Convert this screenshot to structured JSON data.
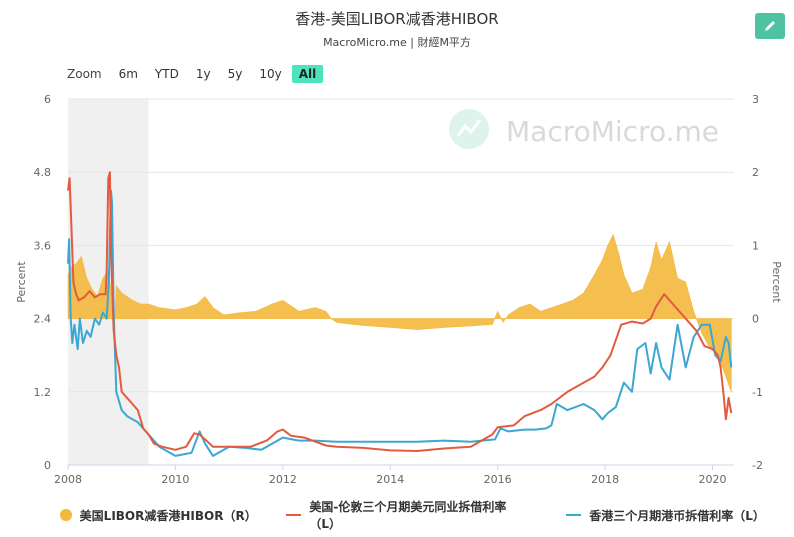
{
  "title": "香港-美国LIBOR减香港HIBOR",
  "subtitle": "MacroMicro.me | 財經M平方",
  "toolbar": {
    "zoom_label": "Zoom",
    "ranges": [
      "6m",
      "YTD",
      "1y",
      "5y",
      "10y",
      "All"
    ],
    "active_range": "All",
    "edit_icon": "pencil-icon",
    "edit_color": "#4fc3a1"
  },
  "watermark": "MacroMicro.me",
  "colors": {
    "spread": "#f3b83c",
    "libor": "#e35a3f",
    "hibor": "#3aa7d4",
    "recession_band": "#f0f0f0"
  },
  "chart_data": {
    "type": "line",
    "left_axis": {
      "label": "Percent",
      "range": [
        0,
        6
      ],
      "ticks": [
        "0",
        "1.2",
        "2.4",
        "3.6",
        "4.8",
        "6"
      ]
    },
    "right_axis": {
      "label": "Percent",
      "range": [
        -2,
        3
      ],
      "ticks": [
        "-2",
        "-1",
        "0",
        "1",
        "2",
        "3"
      ]
    },
    "x_axis": {
      "range": [
        2008.0,
        2020.4
      ],
      "ticks": [
        "2008",
        "2010",
        "2012",
        "2014",
        "2016",
        "2018",
        "2020"
      ]
    },
    "shaded_period": [
      2008.0,
      2009.5
    ],
    "grid": true,
    "series": [
      {
        "name": "美国LIBOR减香港HIBOR（R）",
        "type": "area",
        "axis": "right",
        "x": [
          2008.0,
          2008.05,
          2008.15,
          2008.25,
          2008.35,
          2008.45,
          2008.55,
          2008.65,
          2008.75,
          2008.8,
          2008.85,
          2008.9,
          2009.0,
          2009.1,
          2009.2,
          2009.35,
          2009.5,
          2009.7,
          2010.0,
          2010.2,
          2010.4,
          2010.55,
          2010.7,
          2010.9,
          2011.2,
          2011.5,
          2011.8,
          2012.0,
          2012.3,
          2012.6,
          2012.8,
          2012.9,
          2013.0,
          2013.3,
          2013.6,
          2014.0,
          2014.5,
          2015.0,
          2015.5,
          2015.9,
          2016.0,
          2016.1,
          2016.2,
          2016.4,
          2016.6,
          2016.8,
          2017.0,
          2017.2,
          2017.4,
          2017.6,
          2017.8,
          2017.95,
          2018.05,
          2018.15,
          2018.25,
          2018.35,
          2018.5,
          2018.7,
          2018.85,
          2018.95,
          2019.05,
          2019.2,
          2019.35,
          2019.5,
          2019.65,
          2019.8,
          2019.95,
          2020.1,
          2020.2,
          2020.3,
          2020.35
        ],
        "values": [
          0.6,
          0.7,
          0.75,
          0.85,
          0.55,
          0.4,
          0.3,
          0.55,
          0.65,
          0.4,
          -0.3,
          0.45,
          0.35,
          0.3,
          0.25,
          0.2,
          0.2,
          0.15,
          0.12,
          0.15,
          0.2,
          0.3,
          0.15,
          0.05,
          0.08,
          0.1,
          0.2,
          0.25,
          0.1,
          0.15,
          0.1,
          0.0,
          -0.05,
          -0.08,
          -0.1,
          -0.12,
          -0.15,
          -0.12,
          -0.1,
          -0.08,
          0.1,
          -0.05,
          0.05,
          0.15,
          0.2,
          0.1,
          0.15,
          0.2,
          0.25,
          0.35,
          0.6,
          0.8,
          1.0,
          1.15,
          0.9,
          0.6,
          0.35,
          0.4,
          0.7,
          1.05,
          0.8,
          1.05,
          0.55,
          0.5,
          0.1,
          -0.2,
          -0.4,
          -0.5,
          -0.7,
          -0.9,
          -1.0
        ]
      },
      {
        "name": "美国-伦敦三个月期美元同业拆借利率（L）",
        "type": "line",
        "axis": "left",
        "x": [
          2008.0,
          2008.03,
          2008.06,
          2008.1,
          2008.15,
          2008.2,
          2008.3,
          2008.4,
          2008.5,
          2008.6,
          2008.7,
          2008.72,
          2008.75,
          2008.78,
          2008.8,
          2008.85,
          2008.9,
          2008.95,
          2009.0,
          2009.1,
          2009.2,
          2009.3,
          2009.4,
          2009.5,
          2009.6,
          2009.75,
          2010.0,
          2010.2,
          2010.35,
          2010.45,
          2010.55,
          2010.7,
          2011.0,
          2011.4,
          2011.7,
          2011.9,
          2012.0,
          2012.15,
          2012.4,
          2012.8,
          2013.0,
          2013.5,
          2014.0,
          2014.5,
          2015.0,
          2015.5,
          2015.9,
          2016.0,
          2016.3,
          2016.5,
          2016.8,
          2017.0,
          2017.3,
          2017.5,
          2017.8,
          2017.95,
          2018.1,
          2018.3,
          2018.5,
          2018.7,
          2018.85,
          2018.95,
          2019.1,
          2019.3,
          2019.5,
          2019.7,
          2019.85,
          2020.0,
          2020.1,
          2020.15,
          2020.2,
          2020.25,
          2020.3,
          2020.35
        ],
        "values": [
          4.5,
          4.7,
          4.0,
          3.0,
          2.8,
          2.7,
          2.75,
          2.85,
          2.75,
          2.8,
          2.8,
          3.2,
          4.7,
          4.8,
          3.5,
          2.2,
          1.8,
          1.6,
          1.2,
          1.1,
          1.0,
          0.9,
          0.6,
          0.5,
          0.35,
          0.3,
          0.25,
          0.3,
          0.52,
          0.5,
          0.42,
          0.3,
          0.3,
          0.3,
          0.4,
          0.55,
          0.58,
          0.48,
          0.45,
          0.32,
          0.3,
          0.28,
          0.24,
          0.23,
          0.27,
          0.3,
          0.5,
          0.62,
          0.65,
          0.8,
          0.9,
          1.0,
          1.2,
          1.3,
          1.45,
          1.6,
          1.8,
          2.3,
          2.35,
          2.32,
          2.4,
          2.6,
          2.8,
          2.6,
          2.4,
          2.2,
          1.95,
          1.9,
          1.8,
          1.6,
          1.2,
          0.75,
          1.1,
          0.85
        ]
      },
      {
        "name": "香港三个月期港币拆借利率（L）",
        "type": "line",
        "axis": "left",
        "x": [
          2008.0,
          2008.02,
          2008.05,
          2008.08,
          2008.12,
          2008.18,
          2008.22,
          2008.28,
          2008.35,
          2008.42,
          2008.5,
          2008.58,
          2008.65,
          2008.72,
          2008.76,
          2008.8,
          2008.82,
          2008.85,
          2008.9,
          2009.0,
          2009.1,
          2009.3,
          2009.5,
          2009.7,
          2010.0,
          2010.3,
          2010.45,
          2010.55,
          2010.7,
          2011.0,
          2011.3,
          2011.6,
          2011.9,
          2012.0,
          2012.3,
          2012.6,
          2013.0,
          2013.5,
          2014.0,
          2014.5,
          2015.0,
          2015.5,
          2015.95,
          2016.05,
          2016.2,
          2016.5,
          2016.7,
          2016.9,
          2017.0,
          2017.1,
          2017.3,
          2017.6,
          2017.8,
          2017.95,
          2018.05,
          2018.2,
          2018.35,
          2018.5,
          2018.6,
          2018.75,
          2018.85,
          2018.95,
          2019.05,
          2019.2,
          2019.35,
          2019.5,
          2019.65,
          2019.8,
          2019.95,
          2020.05,
          2020.15,
          2020.25,
          2020.3,
          2020.35
        ],
        "values": [
          3.3,
          3.7,
          2.4,
          2.0,
          2.3,
          1.9,
          2.4,
          2.0,
          2.2,
          2.1,
          2.4,
          2.3,
          2.5,
          2.4,
          3.0,
          4.5,
          4.3,
          2.5,
          1.2,
          0.9,
          0.8,
          0.7,
          0.5,
          0.3,
          0.15,
          0.2,
          0.55,
          0.35,
          0.15,
          0.3,
          0.28,
          0.25,
          0.4,
          0.45,
          0.4,
          0.4,
          0.38,
          0.38,
          0.38,
          0.38,
          0.4,
          0.38,
          0.42,
          0.6,
          0.55,
          0.58,
          0.58,
          0.6,
          0.65,
          1.0,
          0.9,
          1.0,
          0.9,
          0.75,
          0.85,
          0.95,
          1.35,
          1.2,
          1.9,
          2.0,
          1.5,
          2.0,
          1.6,
          1.4,
          2.3,
          1.6,
          2.1,
          2.3,
          2.3,
          1.8,
          1.7,
          2.1,
          2.0,
          1.6
        ]
      }
    ]
  }
}
